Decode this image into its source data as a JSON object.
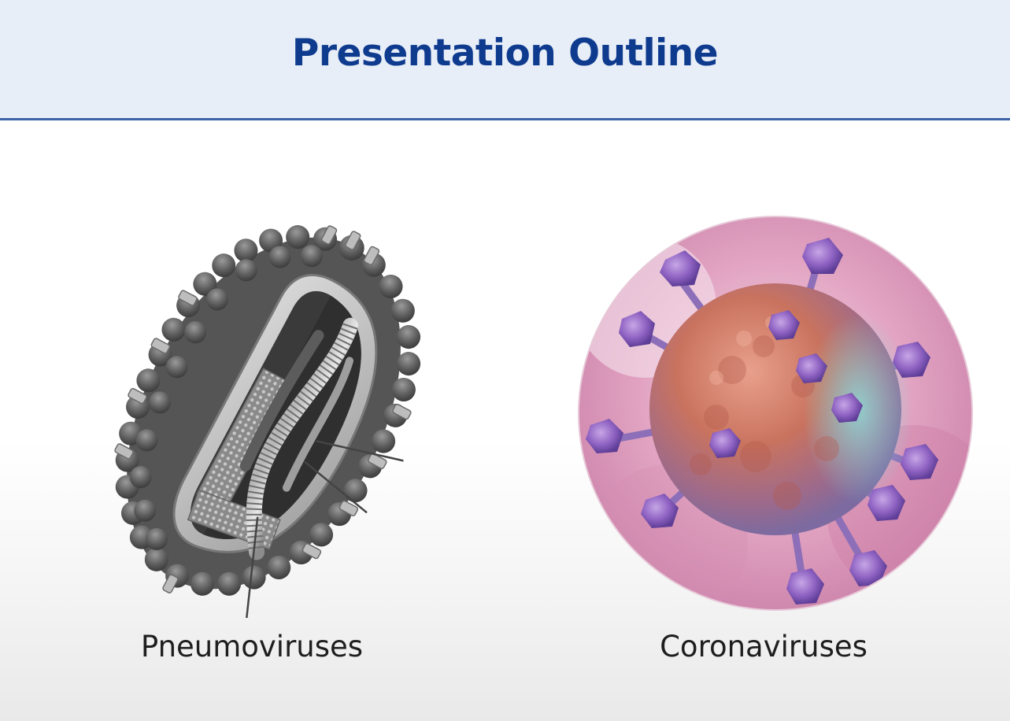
{
  "slide": {
    "title": "Presentation Outline",
    "items": [
      {
        "label": "Pneumoviruses",
        "image_icon": "pneumovirus-illustration"
      },
      {
        "label": "Coronaviruses",
        "image_icon": "coronavirus-illustration"
      }
    ]
  },
  "colors": {
    "header_background": "#e8eef7",
    "header_rule": "#3d64a8",
    "title_text": "#0f3b8f",
    "caption_text": "#1e1e1e"
  }
}
